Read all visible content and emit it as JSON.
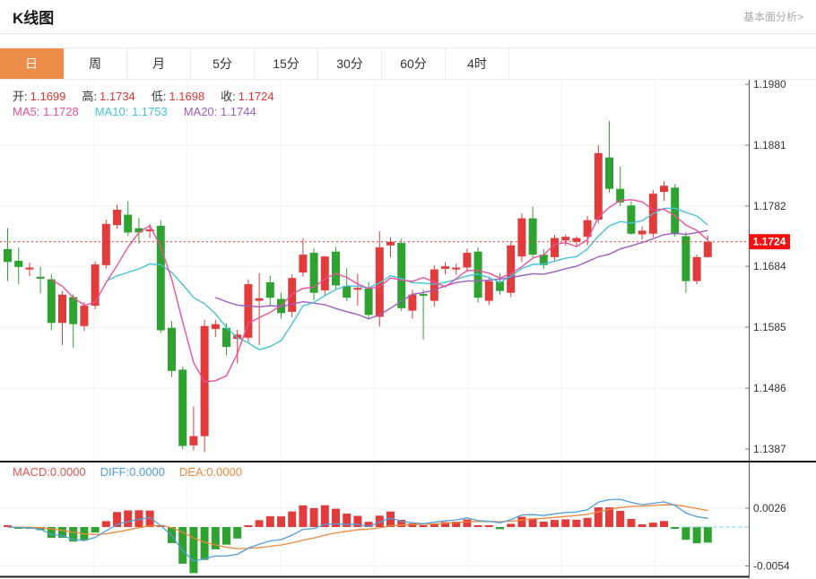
{
  "header": {
    "title": "K线图",
    "link": "基本面分析>"
  },
  "tabs": {
    "items": [
      {
        "label": "日",
        "selected": true
      },
      {
        "label": "周",
        "selected": false
      },
      {
        "label": "月",
        "selected": false
      },
      {
        "label": "5分",
        "selected": false
      },
      {
        "label": "15分",
        "selected": false
      },
      {
        "label": "30分",
        "selected": false
      },
      {
        "label": "60分",
        "selected": false
      },
      {
        "label": "4时",
        "selected": false
      }
    ]
  },
  "legend": {
    "ohlc": [
      {
        "label": "开:",
        "value": "1.1699"
      },
      {
        "label": "高:",
        "value": "1.1734"
      },
      {
        "label": "低:",
        "value": "1.1698"
      },
      {
        "label": "收:",
        "value": "1.1724"
      }
    ],
    "ma": [
      {
        "label": "MA5:",
        "value": "1.1728"
      },
      {
        "label": "MA10:",
        "value": "1.1753"
      },
      {
        "label": "MA20:",
        "value": "1.1744"
      }
    ]
  },
  "macd_legend": [
    {
      "label": "MACD:",
      "value": "0.0000"
    },
    {
      "label": "DIFF:",
      "value": "0.0000"
    },
    {
      "label": "DEA:",
      "value": "0.0000"
    }
  ],
  "price_tag": "1.1724",
  "colors": {
    "up": "#e23b3b",
    "down": "#2fa32f",
    "ma5": "#ec4f9c",
    "ma10": "#45c3d8",
    "ma20": "#a05cc2",
    "diff": "#4f9ee0",
    "dea": "#f0883c",
    "price_line": "#f03030",
    "tag_bg": "#f70e0e",
    "tab_active": "#ee8c4a",
    "grid": "#f1f1f1",
    "axis": "#555555"
  },
  "chart_data": {
    "type": "candlestick",
    "title": "K线图",
    "interval_selected": "日",
    "y_axis_ticks": [
      "1.1980",
      "1.1881",
      "1.1782",
      "1.1684",
      "1.1585",
      "1.1486",
      "1.1387"
    ],
    "current_price": 1.1724,
    "macd_axis_ticks": [
      "0.0026",
      "-0.0054"
    ],
    "ma_periods": [
      5,
      10,
      20
    ],
    "candles": [
      [
        1.1712,
        1.1746,
        1.166,
        1.1691
      ],
      [
        1.1693,
        1.1714,
        1.1655,
        1.1683
      ],
      [
        1.1679,
        1.169,
        1.1668,
        1.1682
      ],
      [
        1.1667,
        1.1683,
        1.164,
        1.1664
      ],
      [
        1.1663,
        1.1671,
        1.158,
        1.1592
      ],
      [
        1.1592,
        1.1644,
        1.1556,
        1.1638
      ],
      [
        1.1634,
        1.1639,
        1.1552,
        1.159
      ],
      [
        1.1587,
        1.1626,
        1.1579,
        1.162
      ],
      [
        1.162,
        1.1692,
        1.1614,
        1.1687
      ],
      [
        1.1686,
        1.176,
        1.168,
        1.1753
      ],
      [
        1.1751,
        1.1784,
        1.1745,
        1.1776
      ],
      [
        1.1768,
        1.179,
        1.1733,
        1.1739
      ],
      [
        1.1746,
        1.1763,
        1.1721,
        1.1739
      ],
      [
        1.1741,
        1.1753,
        1.173,
        1.1744
      ],
      [
        1.175,
        1.1759,
        1.1576,
        1.158
      ],
      [
        1.1584,
        1.1595,
        1.1504,
        1.1514
      ],
      [
        1.1516,
        1.1521,
        1.1387,
        1.1392
      ],
      [
        1.1393,
        1.1456,
        1.1385,
        1.1408
      ],
      [
        1.1408,
        1.1597,
        1.1382,
        1.1587
      ],
      [
        1.1582,
        1.1597,
        1.1569,
        1.159
      ],
      [
        1.1584,
        1.1591,
        1.1539,
        1.1553
      ],
      [
        1.1566,
        1.1581,
        1.1526,
        1.1573
      ],
      [
        1.1568,
        1.1663,
        1.1559,
        1.1655
      ],
      [
        1.1628,
        1.1673,
        1.1556,
        1.1632
      ],
      [
        1.1658,
        1.1669,
        1.1619,
        1.1633
      ],
      [
        1.1631,
        1.1641,
        1.1599,
        1.1608
      ],
      [
        1.161,
        1.1671,
        1.1601,
        1.1665
      ],
      [
        1.1674,
        1.173,
        1.1667,
        1.1703
      ],
      [
        1.1706,
        1.1713,
        1.1629,
        1.1641
      ],
      [
        1.1645,
        1.1701,
        1.1637,
        1.17
      ],
      [
        1.1708,
        1.1716,
        1.1647,
        1.1653
      ],
      [
        1.1652,
        1.1681,
        1.1627,
        1.1633
      ],
      [
        1.1646,
        1.1672,
        1.162,
        1.1649
      ],
      [
        1.1648,
        1.1659,
        1.1599,
        1.1605
      ],
      [
        1.1602,
        1.1741,
        1.1586,
        1.1715
      ],
      [
        1.1718,
        1.1731,
        1.1699,
        1.1724
      ],
      [
        1.1722,
        1.1729,
        1.1611,
        1.1616
      ],
      [
        1.1612,
        1.1646,
        1.1599,
        1.1638
      ],
      [
        1.1639,
        1.1646,
        1.1565,
        1.1636
      ],
      [
        1.1628,
        1.1686,
        1.1619,
        1.1679
      ],
      [
        1.168,
        1.1691,
        1.1671,
        1.1684
      ],
      [
        1.1679,
        1.1688,
        1.167,
        1.1682
      ],
      [
        1.1682,
        1.1713,
        1.1675,
        1.1706
      ],
      [
        1.1708,
        1.1715,
        1.1625,
        1.1633
      ],
      [
        1.1628,
        1.1667,
        1.1621,
        1.166
      ],
      [
        1.1659,
        1.1673,
        1.1638,
        1.1644
      ],
      [
        1.1641,
        1.1725,
        1.1634,
        1.1718
      ],
      [
        1.17,
        1.177,
        1.1691,
        1.1762
      ],
      [
        1.1762,
        1.1781,
        1.1696,
        1.1703
      ],
      [
        1.1703,
        1.1712,
        1.168,
        1.1686
      ],
      [
        1.1699,
        1.1735,
        1.1692,
        1.173
      ],
      [
        1.1726,
        1.1736,
        1.1718,
        1.1732
      ],
      [
        1.1724,
        1.1733,
        1.1716,
        1.173
      ],
      [
        1.1732,
        1.1766,
        1.1718,
        1.1759
      ],
      [
        1.176,
        1.1881,
        1.1754,
        1.1868
      ],
      [
        1.1861,
        1.192,
        1.1804,
        1.181
      ],
      [
        1.181,
        1.1846,
        1.1782,
        1.1788
      ],
      [
        1.1783,
        1.179,
        1.1735,
        1.1737
      ],
      [
        1.1736,
        1.1749,
        1.1728,
        1.1742
      ],
      [
        1.1737,
        1.1808,
        1.1731,
        1.1802
      ],
      [
        1.1805,
        1.1822,
        1.179,
        1.1815
      ],
      [
        1.1812,
        1.1818,
        1.1732,
        1.1736
      ],
      [
        1.1733,
        1.174,
        1.1641,
        1.166
      ],
      [
        1.166,
        1.1703,
        1.1655,
        1.1699
      ],
      [
        1.1699,
        1.1734,
        1.1698,
        1.1724
      ]
    ]
  }
}
